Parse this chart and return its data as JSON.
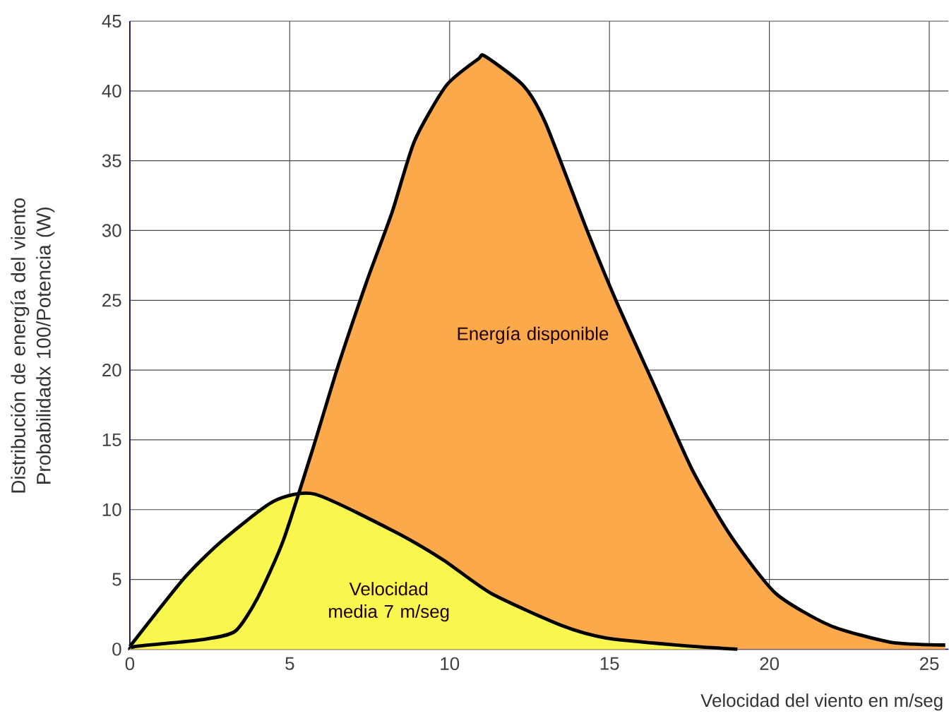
{
  "chart_data": {
    "type": "area",
    "ylabel": "Distribución de energía del viento Probabilidadx 100/Potencia (W)",
    "xlabel": "Velocidad del viento en m/seg",
    "annotations": [
      "Energía disponible",
      "Velocidad media 7 m/seg"
    ],
    "series": [
      {
        "color": "#fba94a",
        "x": [
          0,
          0.2,
          2.3,
          3.3,
          4.0,
          4.8,
          5.7,
          6.5,
          7.4,
          8.2,
          8.9,
          9.9,
          10.9,
          11.1,
          12.3,
          13.0,
          14.3,
          15.2,
          16.4,
          17.6,
          18.8,
          20.2,
          21.9,
          23.8,
          25.5
        ],
        "values": [
          0,
          0.2,
          0.7,
          1.3,
          3.7,
          7.8,
          14.2,
          20.2,
          26.3,
          31.3,
          36.4,
          40.4,
          42.3,
          42.5,
          40.4,
          37.7,
          30.0,
          25.0,
          18.9,
          12.8,
          8.1,
          4.0,
          1.7,
          0.5,
          0.3
        ]
      },
      {
        "color": "#f9f74d",
        "x": [
          0,
          1.7,
          2.9,
          4.5,
          5.8,
          8.3,
          9.8,
          11.3,
          13.5,
          14.9,
          17.1,
          19.0
        ],
        "values": [
          0.2,
          5.1,
          7.8,
          10.6,
          11.1,
          8.4,
          6.4,
          4.0,
          1.7,
          0.8,
          0.3,
          0
        ]
      }
    ],
    "xlim": [
      0,
      25.6
    ],
    "ylim": [
      0,
      45
    ],
    "xticks": [
      0,
      5,
      10,
      15,
      20,
      25
    ],
    "yticks": [
      0,
      5,
      10,
      15,
      20,
      25,
      30,
      35,
      40,
      45
    ],
    "grid": true,
    "marker": "none",
    "line_style": "solid"
  }
}
